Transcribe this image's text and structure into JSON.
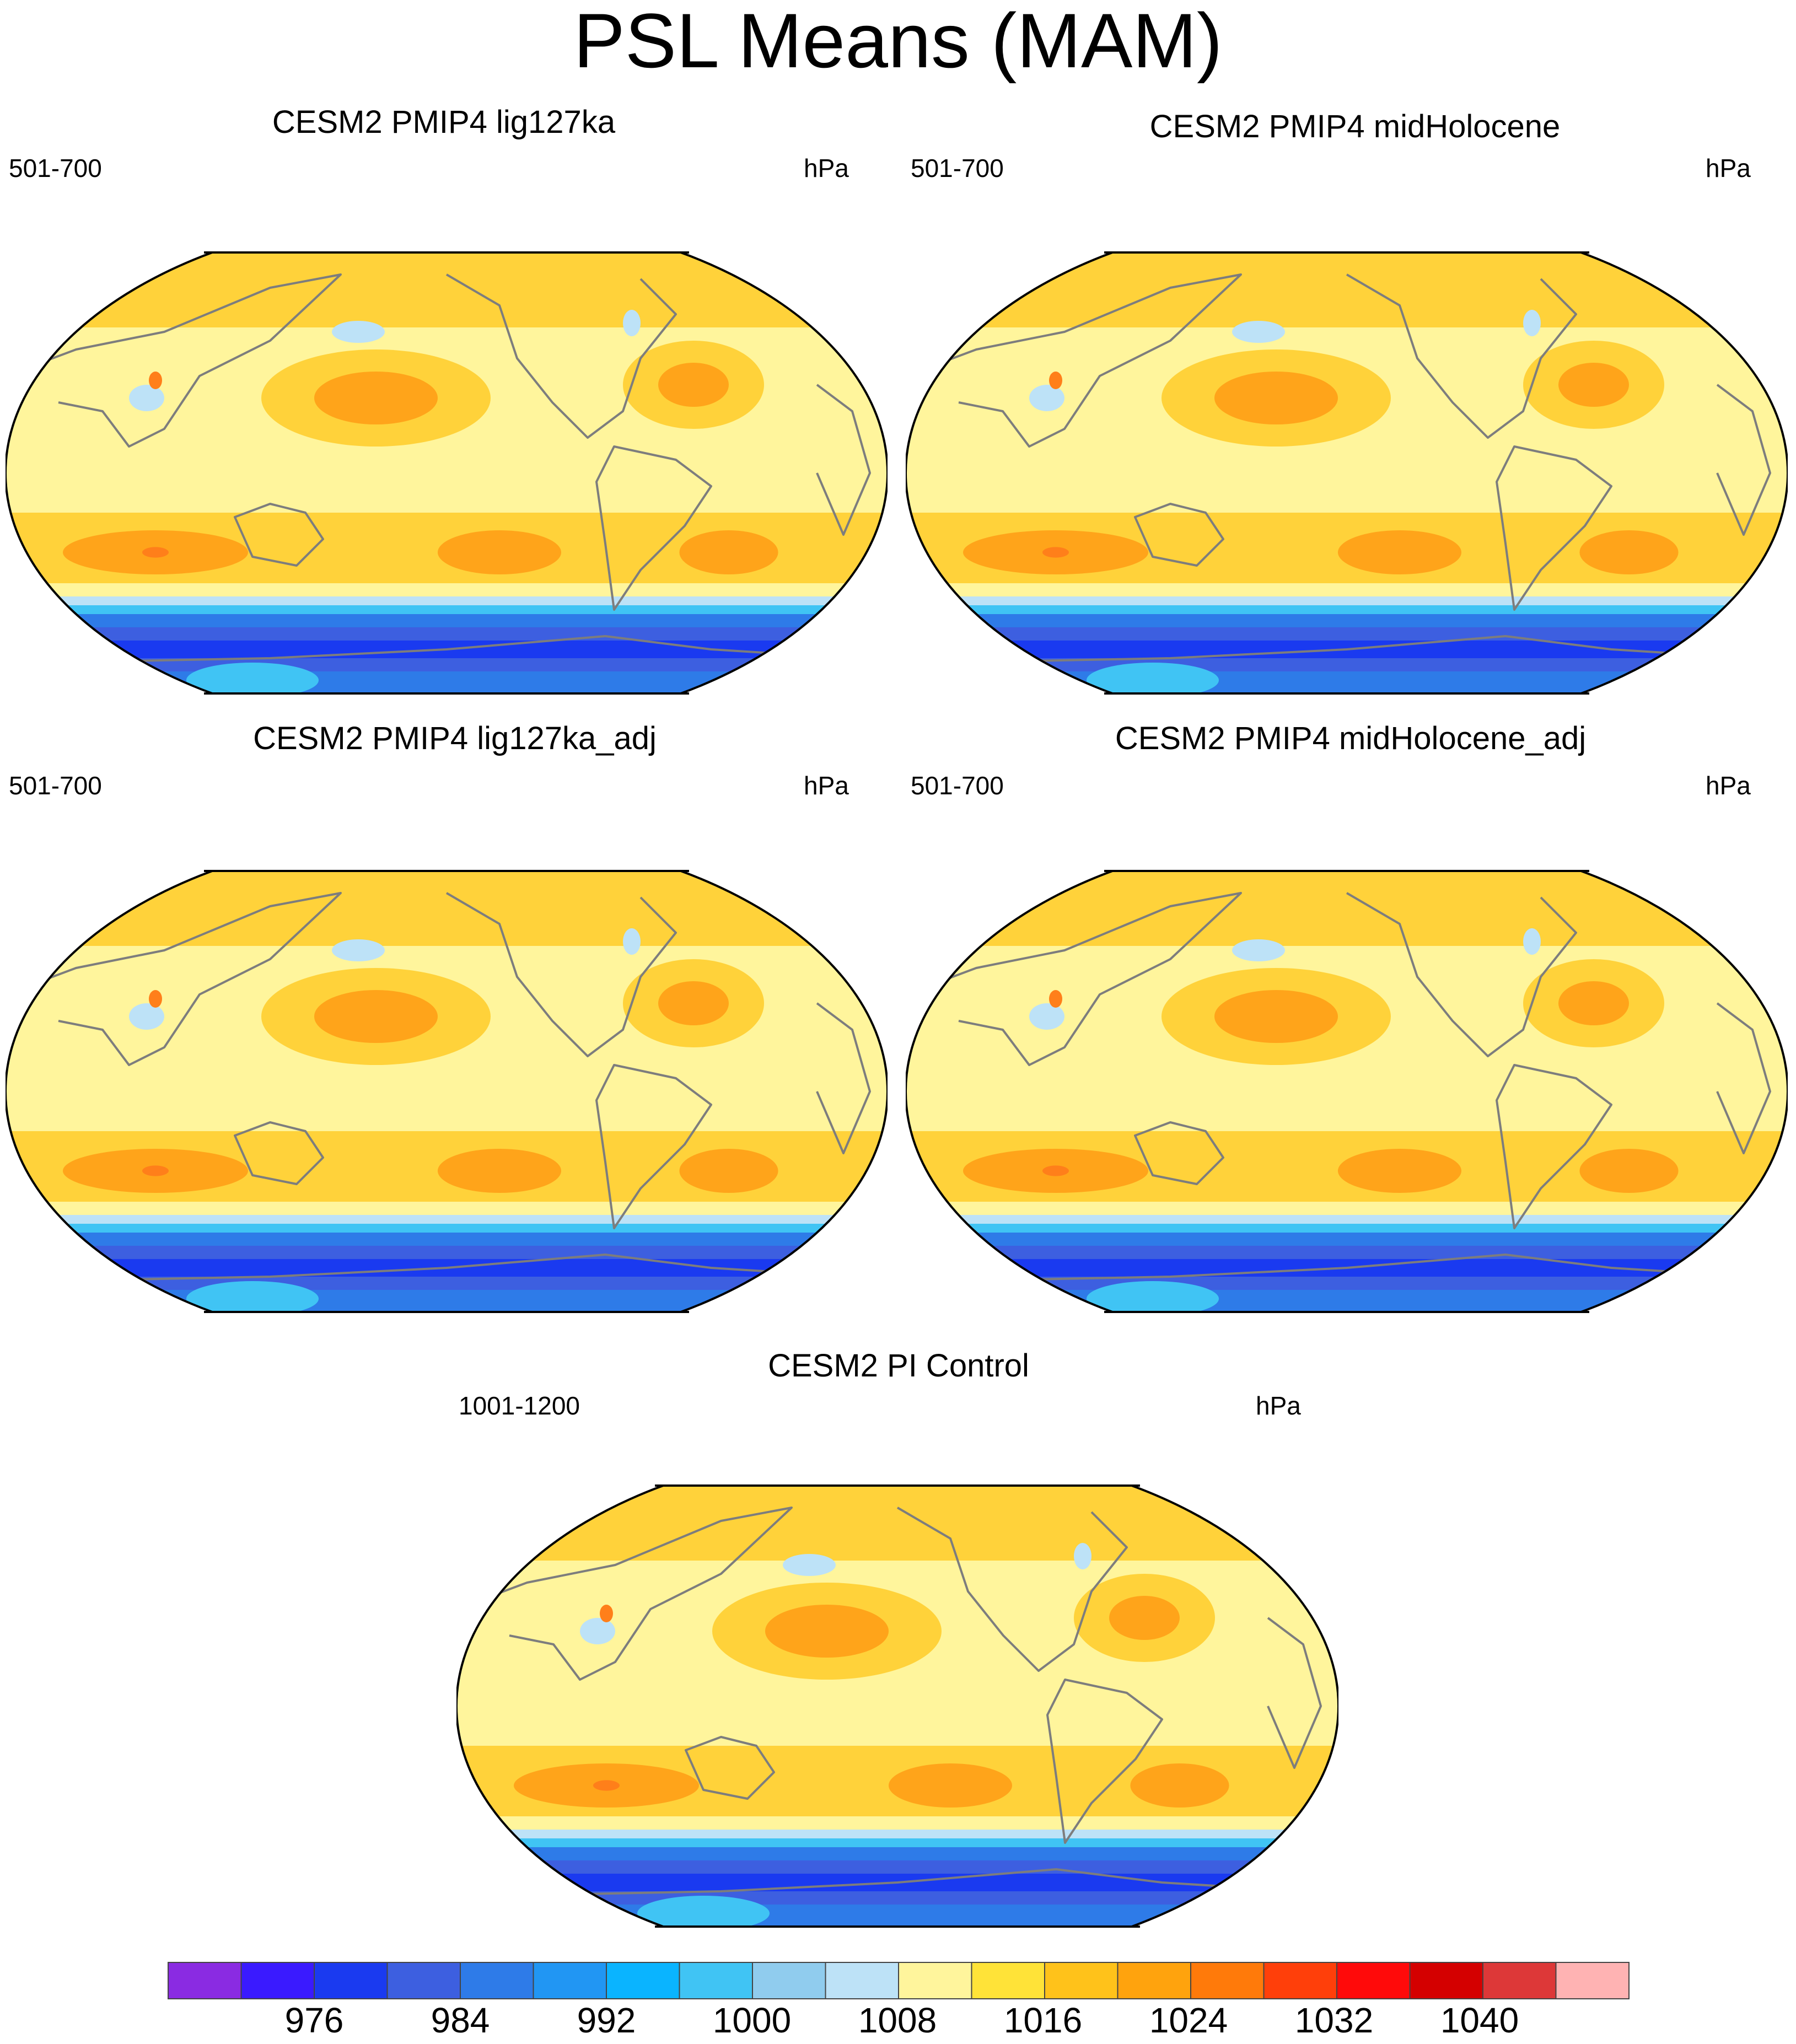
{
  "title": "PSL Means (MAM)",
  "units": "hPa",
  "panels": [
    {
      "title": "CESM2 PMIP4 lig127ka",
      "years": "501-700"
    },
    {
      "title": "CESM2 PMIP4 midHolocene",
      "years": "501-700"
    },
    {
      "title": "CESM2 PMIP4 lig127ka_adj",
      "years": "501-700"
    },
    {
      "title": "CESM2 PMIP4 midHolocene_adj",
      "years": "501-700"
    },
    {
      "title": "CESM2 PI Control",
      "years": "1001-1200"
    }
  ],
  "colorbar": {
    "labels": [
      "976",
      "984",
      "992",
      "1000",
      "1008",
      "1016",
      "1024",
      "1032",
      "1040"
    ],
    "colors": [
      "#8a2be2",
      "#3a1aff",
      "#1a3af0",
      "#3d5fe0",
      "#2e7be8",
      "#2196f3",
      "#0ab4ff",
      "#40c4f4",
      "#90ccee",
      "#bde2f7",
      "#fff59c",
      "#ffe338",
      "#ffc21a",
      "#ffa30d",
      "#ff7a0a",
      "#ff3f0a",
      "#ff0a0a",
      "#d40000",
      "#dd3838",
      "#ffb3b3"
    ]
  },
  "map_colors": {
    "border_band": "#fff59c",
    "subtropic_band": "#ffd23a",
    "high_core": "#ffa41a",
    "high_peak": "#ff7f1a",
    "southern_ocean_1": "#bde2f7",
    "southern_ocean_2": "#40c4f4",
    "southern_ocean_3": "#2e7be8",
    "southern_ocean_4": "#3d5fe0",
    "southern_ocean_5": "#1a3af0",
    "coast": "#7d7d7d"
  }
}
